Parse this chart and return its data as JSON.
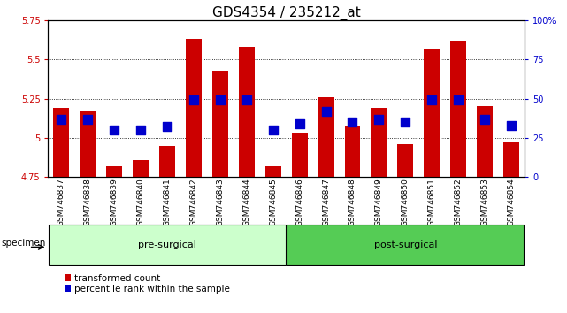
{
  "title": "GDS4354 / 235212_at",
  "samples": [
    "GSM746837",
    "GSM746838",
    "GSM746839",
    "GSM746840",
    "GSM746841",
    "GSM746842",
    "GSM746843",
    "GSM746844",
    "GSM746845",
    "GSM746846",
    "GSM746847",
    "GSM746848",
    "GSM746849",
    "GSM746850",
    "GSM746851",
    "GSM746852",
    "GSM746853",
    "GSM746854"
  ],
  "bar_values": [
    5.19,
    5.17,
    4.82,
    4.86,
    4.95,
    5.63,
    5.43,
    5.58,
    4.82,
    5.03,
    5.26,
    5.07,
    5.19,
    4.96,
    5.57,
    5.62,
    5.2,
    4.97
  ],
  "percentile_values": [
    37,
    37,
    30,
    30,
    32,
    49,
    49,
    49,
    30,
    34,
    42,
    35,
    37,
    35,
    49,
    49,
    37,
    33
  ],
  "bar_bottom": 4.75,
  "ylim_left": [
    4.75,
    5.75
  ],
  "ylim_right": [
    0,
    100
  ],
  "yticks_left": [
    4.75,
    5.0,
    5.25,
    5.5,
    5.75
  ],
  "yticks_right": [
    0,
    25,
    50,
    75,
    100
  ],
  "ytick_labels_left": [
    "4.75",
    "5",
    "5.25",
    "5.5",
    "5.75"
  ],
  "ytick_labels_right": [
    "0",
    "25",
    "50",
    "75",
    "100%"
  ],
  "bar_color": "#cc0000",
  "dot_color": "#0000cc",
  "pre_surgical_count": 9,
  "post_surgical_count": 9,
  "pre_surgical_label": "pre-surgical",
  "post_surgical_label": "post-surgical",
  "pre_surgical_color": "#ccffcc",
  "post_surgical_color": "#55cc55",
  "specimen_label": "specimen",
  "legend_label_count": "transformed count",
  "legend_label_pct": "percentile rank within the sample",
  "bar_width": 0.6,
  "dot_size": 45,
  "title_fontsize": 11,
  "tick_fontsize": 7,
  "axis_label_color_left": "#cc0000",
  "axis_label_color_right": "#0000cc",
  "bg_color": "#e8e8e8"
}
